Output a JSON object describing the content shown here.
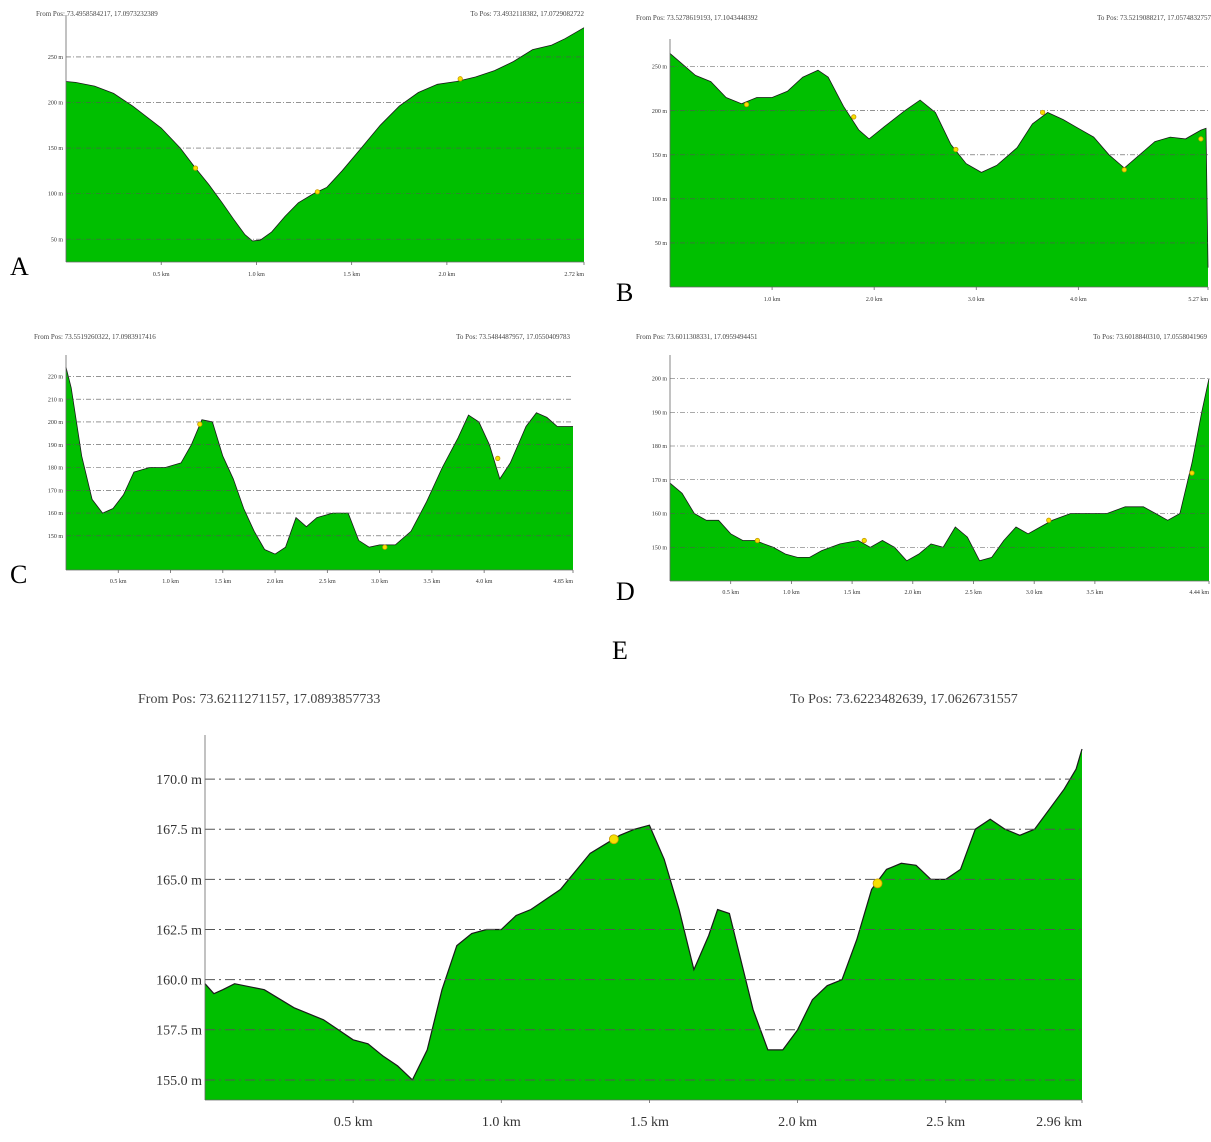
{
  "colors": {
    "fill": "#00bf00",
    "line": "#1a1a1a",
    "grid": "#555555",
    "marker": "#f5e000",
    "marker_stroke": "#c99a00"
  },
  "chart_data": [
    {
      "type": "area",
      "label": "A",
      "from_pos": "From Pos: 73.4958584217, 17.0973232389",
      "to_pos": "To Pos: 73.4932118382, 17.0729082722",
      "x_ticks": [
        0.5,
        1.0,
        1.5,
        2.0,
        2.72
      ],
      "x_tick_labels": [
        "0.5 km",
        "1.0 km",
        "1.5 km",
        "2.0 km",
        "2.72 km"
      ],
      "y_ticks": [
        50,
        100,
        150,
        200,
        250
      ],
      "y_tick_labels": [
        "50 m",
        "100 m",
        "150 m",
        "200 m",
        "250 m"
      ],
      "xlim": [
        0,
        2.72
      ],
      "ylim": [
        25,
        285
      ],
      "grid": true,
      "profile": [
        [
          0,
          223
        ],
        [
          0.05,
          222
        ],
        [
          0.15,
          218
        ],
        [
          0.25,
          210
        ],
        [
          0.35,
          196
        ],
        [
          0.5,
          172
        ],
        [
          0.6,
          150
        ],
        [
          0.68,
          128
        ],
        [
          0.75,
          110
        ],
        [
          0.82,
          90
        ],
        [
          0.88,
          72
        ],
        [
          0.94,
          55
        ],
        [
          0.98,
          48
        ],
        [
          1.02,
          49
        ],
        [
          1.08,
          58
        ],
        [
          1.15,
          75
        ],
        [
          1.22,
          90
        ],
        [
          1.3,
          100
        ],
        [
          1.37,
          107
        ],
        [
          1.45,
          125
        ],
        [
          1.55,
          150
        ],
        [
          1.65,
          175
        ],
        [
          1.75,
          196
        ],
        [
          1.85,
          211
        ],
        [
          1.95,
          220
        ],
        [
          2.05,
          223
        ],
        [
          2.15,
          228
        ],
        [
          2.25,
          235
        ],
        [
          2.35,
          245
        ],
        [
          2.45,
          258
        ],
        [
          2.55,
          263
        ],
        [
          2.62,
          270
        ],
        [
          2.72,
          282
        ]
      ],
      "markers": [
        [
          0.68,
          128
        ],
        [
          1.32,
          102
        ],
        [
          2.07,
          226
        ]
      ]
    },
    {
      "type": "area",
      "label": "B",
      "from_pos": "From Pos: 73.5278619193, 17.1043448392",
      "to_pos": "To Pos: 73.5219088217, 17.0574832757",
      "x_ticks": [
        1.0,
        2.0,
        3.0,
        4.0,
        5.27
      ],
      "x_tick_labels": [
        "1.0 km",
        "2.0 km",
        "3.0 km",
        "4.0 km",
        "5.27 km"
      ],
      "y_ticks": [
        50,
        100,
        150,
        200,
        250
      ],
      "y_tick_labels": [
        "50 m",
        "100 m",
        "150 m",
        "200 m",
        "250 m"
      ],
      "xlim": [
        0,
        5.27
      ],
      "ylim": [
        0,
        270
      ],
      "grid": true,
      "profile": [
        [
          0,
          265
        ],
        [
          0.1,
          255
        ],
        [
          0.25,
          240
        ],
        [
          0.4,
          233
        ],
        [
          0.55,
          215
        ],
        [
          0.7,
          208
        ],
        [
          0.85,
          215
        ],
        [
          1.0,
          215
        ],
        [
          1.15,
          222
        ],
        [
          1.3,
          238
        ],
        [
          1.45,
          246
        ],
        [
          1.55,
          238
        ],
        [
          1.7,
          205
        ],
        [
          1.85,
          178
        ],
        [
          1.95,
          168
        ],
        [
          2.1,
          182
        ],
        [
          2.3,
          200
        ],
        [
          2.45,
          212
        ],
        [
          2.6,
          198
        ],
        [
          2.75,
          162
        ],
        [
          2.9,
          140
        ],
        [
          3.05,
          130
        ],
        [
          3.2,
          138
        ],
        [
          3.4,
          158
        ],
        [
          3.55,
          185
        ],
        [
          3.7,
          198
        ],
        [
          3.85,
          190
        ],
        [
          4.0,
          180
        ],
        [
          4.15,
          170
        ],
        [
          4.3,
          150
        ],
        [
          4.45,
          135
        ],
        [
          4.6,
          150
        ],
        [
          4.75,
          165
        ],
        [
          4.9,
          170
        ],
        [
          5.05,
          168
        ],
        [
          5.2,
          178
        ],
        [
          5.25,
          180
        ],
        [
          5.27,
          22
        ]
      ],
      "markers": [
        [
          0.75,
          207
        ],
        [
          1.8,
          193
        ],
        [
          2.8,
          156
        ],
        [
          3.65,
          198
        ],
        [
          4.45,
          133
        ],
        [
          5.2,
          168
        ]
      ]
    },
    {
      "type": "area",
      "label": "C",
      "from_pos": "From Pos: 73.5519260322, 17.0983917416",
      "to_pos": "To Pos: 73.5484487957, 17.0550409783",
      "x_ticks": [
        0.5,
        1.0,
        1.5,
        2.0,
        2.5,
        3.0,
        3.5,
        4.0,
        4.85
      ],
      "x_tick_labels": [
        "0.5 km",
        "1.0 km",
        "1.5 km",
        "2.0 km",
        "2.5 km",
        "3.0 km",
        "3.5 km",
        "4.0 km",
        "4.85 km"
      ],
      "y_ticks": [
        150,
        160,
        170,
        180,
        190,
        200,
        210,
        220
      ],
      "y_tick_labels": [
        "150 m",
        "160 m",
        "170 m",
        "180 m",
        "190 m",
        "200 m",
        "210 m",
        "220 m"
      ],
      "xlim": [
        0,
        4.85
      ],
      "ylim": [
        135,
        225
      ],
      "grid": true,
      "profile": [
        [
          0,
          224
        ],
        [
          0.05,
          215
        ],
        [
          0.15,
          185
        ],
        [
          0.25,
          166
        ],
        [
          0.35,
          160
        ],
        [
          0.45,
          162
        ],
        [
          0.55,
          168
        ],
        [
          0.65,
          178
        ],
        [
          0.8,
          180
        ],
        [
          0.95,
          180
        ],
        [
          1.1,
          182
        ],
        [
          1.2,
          190
        ],
        [
          1.3,
          201
        ],
        [
          1.4,
          200
        ],
        [
          1.5,
          185
        ],
        [
          1.6,
          175
        ],
        [
          1.7,
          162
        ],
        [
          1.8,
          152
        ],
        [
          1.9,
          144
        ],
        [
          2.0,
          142
        ],
        [
          2.1,
          145
        ],
        [
          2.2,
          158
        ],
        [
          2.3,
          154
        ],
        [
          2.4,
          158
        ],
        [
          2.55,
          160
        ],
        [
          2.7,
          160
        ],
        [
          2.8,
          148
        ],
        [
          2.9,
          145
        ],
        [
          3.0,
          146
        ],
        [
          3.15,
          146
        ],
        [
          3.3,
          152
        ],
        [
          3.45,
          165
        ],
        [
          3.6,
          180
        ],
        [
          3.75,
          193
        ],
        [
          3.85,
          203
        ],
        [
          3.95,
          200
        ],
        [
          4.05,
          190
        ],
        [
          4.15,
          175
        ],
        [
          4.25,
          182
        ],
        [
          4.4,
          198
        ],
        [
          4.5,
          204
        ],
        [
          4.6,
          202
        ],
        [
          4.7,
          198
        ],
        [
          4.85,
          198
        ]
      ],
      "markers": [
        [
          1.28,
          199
        ],
        [
          3.05,
          145
        ],
        [
          4.13,
          184
        ]
      ]
    },
    {
      "type": "area",
      "label": "D",
      "from_pos": "From Pos: 73.6011308331, 17.0959494451",
      "to_pos": "To Pos: 73.6018840310, 17.0558041969",
      "x_ticks": [
        0.5,
        1.0,
        1.5,
        2.0,
        2.5,
        3.0,
        3.5,
        4.44
      ],
      "x_tick_labels": [
        "0.5 km",
        "1.0 km",
        "1.5 km",
        "2.0 km",
        "2.5 km",
        "3.0 km",
        "3.5 km",
        "4.44 km"
      ],
      "y_ticks": [
        150,
        160,
        170,
        180,
        190,
        200
      ],
      "y_tick_labels": [
        "150 m",
        "160 m",
        "170 m",
        "180 m",
        "190 m",
        "200 m"
      ],
      "xlim": [
        0,
        4.44
      ],
      "ylim": [
        140,
        204
      ],
      "grid": true,
      "profile": [
        [
          0,
          169
        ],
        [
          0.1,
          166
        ],
        [
          0.2,
          160
        ],
        [
          0.3,
          158
        ],
        [
          0.4,
          158
        ],
        [
          0.5,
          154
        ],
        [
          0.6,
          152
        ],
        [
          0.7,
          152
        ],
        [
          0.85,
          150
        ],
        [
          0.95,
          148
        ],
        [
          1.05,
          147
        ],
        [
          1.15,
          147
        ],
        [
          1.25,
          149
        ],
        [
          1.4,
          151
        ],
        [
          1.55,
          152
        ],
        [
          1.65,
          150
        ],
        [
          1.75,
          152
        ],
        [
          1.85,
          150
        ],
        [
          1.95,
          146
        ],
        [
          2.05,
          148
        ],
        [
          2.15,
          151
        ],
        [
          2.25,
          150
        ],
        [
          2.35,
          156
        ],
        [
          2.45,
          153
        ],
        [
          2.55,
          146
        ],
        [
          2.65,
          147
        ],
        [
          2.75,
          152
        ],
        [
          2.85,
          156
        ],
        [
          2.95,
          154
        ],
        [
          3.05,
          156
        ],
        [
          3.15,
          158
        ],
        [
          3.3,
          160
        ],
        [
          3.45,
          160
        ],
        [
          3.6,
          160
        ],
        [
          3.75,
          162
        ],
        [
          3.9,
          162
        ],
        [
          4.0,
          160
        ],
        [
          4.1,
          158
        ],
        [
          4.2,
          160
        ],
        [
          4.3,
          175
        ],
        [
          4.38,
          190
        ],
        [
          4.44,
          200
        ]
      ],
      "markers": [
        [
          0.72,
          152
        ],
        [
          1.6,
          152
        ],
        [
          3.12,
          158
        ],
        [
          4.3,
          172
        ]
      ]
    },
    {
      "type": "area",
      "label": "E",
      "from_pos": "From Pos: 73.6211271157, 17.0893857733",
      "to_pos": "To Pos: 73.6223482639, 17.0626731557",
      "x_ticks": [
        0.5,
        1.0,
        1.5,
        2.0,
        2.5,
        2.96
      ],
      "x_tick_labels": [
        "0.5 km",
        "1.0 km",
        "1.5 km",
        "2.0 km",
        "2.5 km",
        "2.96 km"
      ],
      "y_ticks": [
        155.0,
        157.5,
        160.0,
        162.5,
        165.0,
        167.5,
        170.0
      ],
      "y_tick_labels": [
        "155.0 m",
        "157.5 m",
        "160.0 m",
        "162.5 m",
        "165.0 m",
        "167.5 m",
        "170.0 m"
      ],
      "xlim": [
        0,
        2.96
      ],
      "ylim": [
        154.0,
        171.7
      ],
      "grid": true,
      "profile": [
        [
          0,
          159.8
        ],
        [
          0.03,
          159.3
        ],
        [
          0.06,
          159.5
        ],
        [
          0.1,
          159.8
        ],
        [
          0.2,
          159.5
        ],
        [
          0.3,
          158.6
        ],
        [
          0.4,
          158.0
        ],
        [
          0.45,
          157.5
        ],
        [
          0.5,
          157.0
        ],
        [
          0.55,
          156.8
        ],
        [
          0.6,
          156.2
        ],
        [
          0.65,
          155.7
        ],
        [
          0.7,
          155.0
        ],
        [
          0.75,
          156.5
        ],
        [
          0.8,
          159.5
        ],
        [
          0.85,
          161.7
        ],
        [
          0.9,
          162.3
        ],
        [
          0.95,
          162.5
        ],
        [
          1.0,
          162.5
        ],
        [
          1.05,
          163.2
        ],
        [
          1.1,
          163.5
        ],
        [
          1.2,
          164.5
        ],
        [
          1.3,
          166.3
        ],
        [
          1.4,
          167.2
        ],
        [
          1.45,
          167.5
        ],
        [
          1.5,
          167.7
        ],
        [
          1.55,
          166.0
        ],
        [
          1.6,
          163.5
        ],
        [
          1.65,
          160.5
        ],
        [
          1.7,
          162.2
        ],
        [
          1.73,
          163.5
        ],
        [
          1.77,
          163.3
        ],
        [
          1.8,
          161.5
        ],
        [
          1.85,
          158.5
        ],
        [
          1.9,
          156.5
        ],
        [
          1.95,
          156.5
        ],
        [
          2.0,
          157.5
        ],
        [
          2.05,
          159.0
        ],
        [
          2.1,
          159.7
        ],
        [
          2.15,
          160.0
        ],
        [
          2.2,
          162.0
        ],
        [
          2.25,
          164.5
        ],
        [
          2.3,
          165.5
        ],
        [
          2.35,
          165.8
        ],
        [
          2.4,
          165.7
        ],
        [
          2.45,
          165.0
        ],
        [
          2.5,
          165.0
        ],
        [
          2.55,
          165.5
        ],
        [
          2.6,
          167.5
        ],
        [
          2.65,
          168.0
        ],
        [
          2.7,
          167.5
        ],
        [
          2.75,
          167.2
        ],
        [
          2.8,
          167.5
        ],
        [
          2.85,
          168.5
        ],
        [
          2.9,
          169.5
        ],
        [
          2.94,
          170.5
        ],
        [
          2.96,
          171.5
        ]
      ],
      "markers": [
        [
          1.38,
          167.0
        ],
        [
          2.27,
          164.8
        ]
      ]
    }
  ]
}
